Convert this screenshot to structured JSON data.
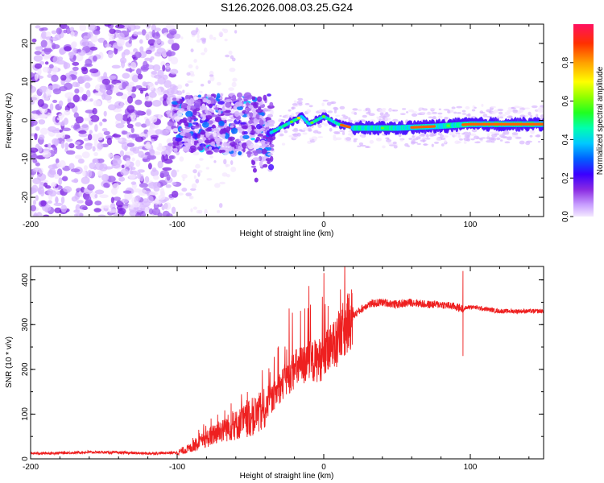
{
  "title": "S126.2026.008.03.25.G24",
  "colors": {
    "snr_line": "#ee2020",
    "background": "#ffffff",
    "axis": "#000000"
  },
  "chart_data": [
    {
      "type": "heatmap",
      "xlabel": "Height of straight line (km)",
      "ylabel": "Frequency (Hz)",
      "xlim": [
        -200,
        150
      ],
      "ylim": [
        -25,
        25
      ],
      "xticks": [
        -200,
        -100,
        0,
        100
      ],
      "xtick_labels": [
        "-200",
        "-100",
        "0",
        "100"
      ],
      "yticks": [
        -20,
        -10,
        0,
        10,
        20
      ],
      "ytick_labels": [
        "-20",
        "-10",
        "0",
        "10",
        "20"
      ],
      "description_values": {
        "scatter_noise_region_x": [
          -200,
          -100
        ],
        "noise_band_region_x": [
          -100,
          -35
        ],
        "ridge_start_x": -35,
        "ridge_frequency_trace": [
          {
            "x": -40,
            "f": -4
          },
          {
            "x": -35,
            "f": -3
          },
          {
            "x": -30,
            "f": -2
          },
          {
            "x": -25,
            "f": -1
          },
          {
            "x": -20,
            "f": 0
          },
          {
            "x": -15,
            "f": 1
          },
          {
            "x": -10,
            "f": -1
          },
          {
            "x": -5,
            "f": 0
          },
          {
            "x": 0,
            "f": 1
          },
          {
            "x": 10,
            "f": -1
          },
          {
            "x": 20,
            "f": -2
          },
          {
            "x": 50,
            "f": -2
          },
          {
            "x": 80,
            "f": -1.5
          },
          {
            "x": 100,
            "f": -1
          },
          {
            "x": 150,
            "f": -1
          }
        ]
      },
      "colorbar": {
        "label": "Normalized spectral amplitude",
        "range": [
          0,
          1
        ],
        "ticks": [
          0.0,
          0.2,
          0.4,
          0.6,
          0.8
        ],
        "tick_labels": [
          "0.0",
          "0.2",
          "0.4",
          "0.6",
          "0.8"
        ]
      }
    },
    {
      "type": "line",
      "xlabel": "Height of straight line (km)",
      "ylabel": "SNR (10 * v/v)",
      "xlim": [
        -200,
        150
      ],
      "ylim": [
        0,
        430
      ],
      "xticks": [
        -200,
        -100,
        0,
        100
      ],
      "xtick_labels": [
        "-200",
        "-100",
        "0",
        "100"
      ],
      "yticks": [
        0,
        100,
        200,
        300,
        400
      ],
      "ytick_labels": [
        "0",
        "100",
        "200",
        "300",
        "400"
      ],
      "series": [
        {
          "name": "SNR",
          "x": [
            -200,
            -180,
            -160,
            -140,
            -120,
            -100,
            -90,
            -80,
            -70,
            -60,
            -50,
            -40,
            -30,
            -20,
            -10,
            0,
            10,
            20,
            30,
            40,
            50,
            60,
            70,
            80,
            90,
            95,
            100,
            110,
            120,
            130,
            140,
            150
          ],
          "y": [
            12,
            13,
            15,
            14,
            12,
            14,
            25,
            45,
            65,
            75,
            90,
            110,
            160,
            200,
            215,
            225,
            270,
            320,
            345,
            350,
            345,
            350,
            345,
            345,
            340,
            335,
            340,
            335,
            330,
            330,
            330,
            330
          ]
        }
      ],
      "notable_spikes": [
        {
          "x": 95,
          "y": 420
        },
        {
          "x": 95,
          "y": 230
        }
      ]
    }
  ]
}
